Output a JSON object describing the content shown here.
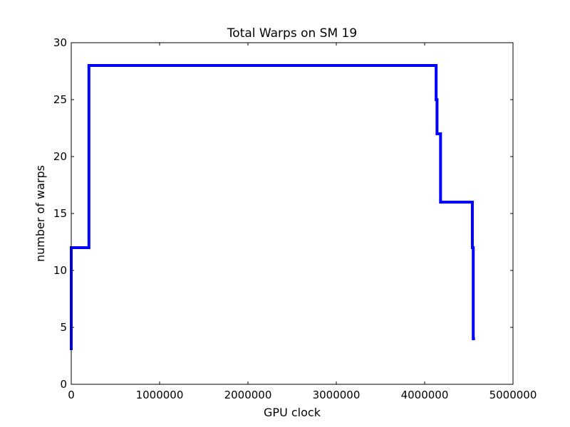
{
  "chart_data": {
    "type": "line",
    "title": "Total Warps on SM 19",
    "xlabel": "GPU clock",
    "ylabel": "number of warps",
    "xlim": [
      0,
      5000000
    ],
    "ylim": [
      0,
      30
    ],
    "xticks": [
      0,
      1000000,
      2000000,
      3000000,
      4000000,
      5000000
    ],
    "xtick_labels": [
      "0",
      "1000000",
      "2000000",
      "3000000",
      "4000000",
      "5000000"
    ],
    "yticks": [
      0,
      5,
      10,
      15,
      20,
      25,
      30
    ],
    "ytick_labels": [
      "0",
      "5",
      "10",
      "15",
      "20",
      "25",
      "30"
    ],
    "grid": false,
    "legend": "none",
    "line_style": "step",
    "series": [
      {
        "color": "#0000ff",
        "x": [
          0,
          0,
          200000,
          200000,
          4130000,
          4130000,
          4140000,
          4140000,
          4180000,
          4180000,
          4540000,
          4540000,
          4550000,
          4550000,
          4570000
        ],
        "y": [
          3,
          12,
          12,
          28,
          28,
          25,
          25,
          22,
          22,
          16,
          16,
          12,
          12,
          4,
          4
        ]
      }
    ]
  }
}
